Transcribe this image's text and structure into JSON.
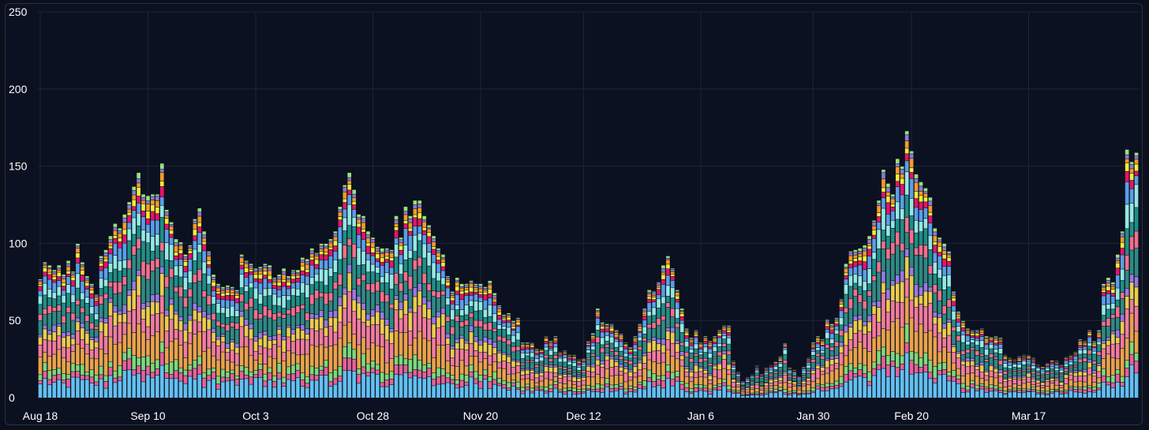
{
  "chart_data": {
    "type": "bar",
    "stacked": true,
    "title": "",
    "xlabel": "",
    "ylabel": "",
    "ylim": [
      0,
      250
    ],
    "y_ticks": [
      0,
      50,
      100,
      150,
      200,
      250
    ],
    "x_tick_labels": [
      "Aug 18",
      "Sep 10",
      "Oct 3",
      "Oct 28",
      "Nov 20",
      "Dec 12",
      "Jan 6",
      "Jan 30",
      "Feb 20",
      "Mar 17"
    ],
    "x_tick_positions": [
      0,
      23,
      46,
      71,
      94,
      116,
      141,
      165,
      186,
      211
    ],
    "grid": true,
    "legend": "none",
    "background": "#0b1120",
    "colors": [
      "#63bff0",
      "#e8609a",
      "#7dd87a",
      "#e8a24a",
      "#f27b9c",
      "#eacb4e",
      "#9a79e0",
      "#2f8a83",
      "#f26f8a",
      "#1f8f85",
      "#94e8e2",
      "#5b9ee6",
      "#e8126b",
      "#f2ec3a",
      "#f59a2a",
      "#8a7ad6",
      "#9be07c"
    ],
    "totals": [
      77,
      88,
      86,
      83,
      86,
      80,
      89,
      82,
      100,
      88,
      79,
      74,
      67,
      92,
      96,
      105,
      113,
      110,
      119,
      127,
      137,
      146,
      132,
      131,
      132,
      132,
      152,
      122,
      114,
      103,
      101,
      93,
      99,
      116,
      123,
      108,
      95,
      80,
      74,
      72,
      73,
      72,
      70,
      93,
      89,
      87,
      84,
      85,
      87,
      86,
      78,
      80,
      84,
      79,
      83,
      83,
      91,
      90,
      97,
      94,
      100,
      100,
      103,
      108,
      124,
      138,
      146,
      135,
      119,
      118,
      108,
      104,
      98,
      97,
      97,
      96,
      118,
      104,
      124,
      118,
      128,
      128,
      118,
      112,
      105,
      97,
      93,
      79,
      69,
      78,
      74,
      74,
      76,
      74,
      74,
      72,
      76,
      68,
      60,
      54,
      55,
      50,
      52,
      36,
      36,
      36,
      32,
      32,
      40,
      37,
      40,
      30,
      31,
      28,
      28,
      25,
      26,
      37,
      42,
      58,
      49,
      48,
      48,
      44,
      42,
      36,
      33,
      40,
      48,
      58,
      70,
      69,
      75,
      86,
      92,
      84,
      70,
      58,
      45,
      39,
      44,
      36,
      40,
      37,
      40,
      44,
      47,
      47,
      24,
      18,
      12,
      14,
      16,
      21,
      16,
      20,
      22,
      24,
      27,
      36,
      20,
      19,
      15,
      21,
      26,
      36,
      40,
      38,
      51,
      48,
      52,
      64,
      87,
      95,
      96,
      97,
      99,
      105,
      115,
      128,
      148,
      139,
      132,
      155,
      150,
      173,
      160,
      145,
      140,
      136,
      130,
      110,
      104,
      100,
      95,
      69,
      56,
      50,
      45,
      44,
      44,
      45,
      40,
      40,
      40,
      39,
      28,
      26,
      25,
      27,
      28,
      28,
      26,
      22,
      21,
      23,
      25,
      24,
      22,
      27,
      28,
      30,
      38,
      37,
      44,
      37,
      44,
      74,
      78,
      75,
      93,
      108,
      161,
      153,
      159
    ]
  }
}
